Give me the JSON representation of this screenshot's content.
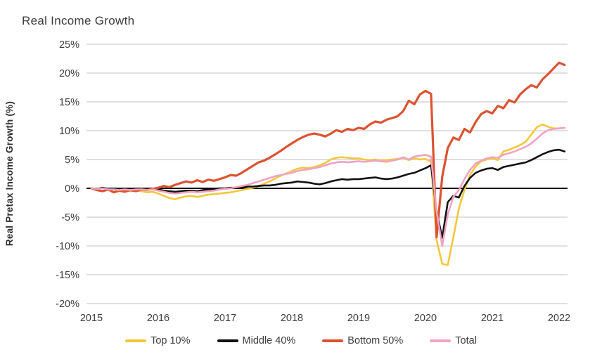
{
  "chart_data": {
    "type": "line",
    "title": "Real Income Growth",
    "ylabel": "Real Pretax Income Growth (%)",
    "xlabel": "",
    "ylim": [
      -20,
      25
    ],
    "ytick_values": [
      25,
      20,
      15,
      10,
      5,
      0,
      -5,
      -10,
      -15,
      -20
    ],
    "ytick_labels": [
      "25%",
      "20%",
      "15%",
      "10%",
      "5%",
      "0%",
      "-5%",
      "-10%",
      "-15%",
      "-20%"
    ],
    "xtick_labels": [
      "2015",
      "2016",
      "2017",
      "2018",
      "2019",
      "2020",
      "2021",
      "2022"
    ],
    "x_start": "2015-01",
    "x_end": "2022-02",
    "x_frequency": "monthly",
    "grid": "horizontal-only",
    "grid_color": "#c2c2c2",
    "text_color": "#3c3c3c",
    "zero_line": true,
    "zero_line_color": "#000000",
    "legend_position": "bottom",
    "series": [
      {
        "name": "Top 10%",
        "color": "#F3C73C",
        "line_width": 2.6,
        "values": [
          0,
          -0.2,
          0.1,
          -0.3,
          -0.2,
          -0.4,
          -0.3,
          -0.5,
          -0.4,
          -0.5,
          -0.7,
          -0.6,
          -0.9,
          -1.3,
          -1.7,
          -1.9,
          -1.6,
          -1.4,
          -1.3,
          -1.5,
          -1.3,
          -1.1,
          -1.0,
          -0.9,
          -0.8,
          -0.7,
          -0.5,
          -0.3,
          -0.1,
          0.1,
          0.4,
          0.8,
          1.2,
          1.7,
          2.2,
          2.6,
          3.0,
          3.4,
          3.6,
          3.5,
          3.7,
          4.0,
          4.4,
          5.0,
          5.3,
          5.4,
          5.3,
          5.2,
          5.2,
          5.0,
          4.9,
          5.0,
          4.8,
          4.9,
          5.0,
          5.1,
          5.3,
          4.9,
          5.2,
          5.0,
          5.1,
          4.6,
          -9.0,
          -13.1,
          -13.3,
          -8.5,
          -3.5,
          -0.3,
          2.3,
          3.8,
          4.7,
          5.0,
          5.2,
          4.9,
          6.4,
          6.7,
          7.1,
          7.5,
          8.1,
          9.3,
          10.6,
          11.1,
          10.7,
          10.4,
          10.4,
          10.5
        ]
      },
      {
        "name": "Middle 40%",
        "color": "#111111",
        "line_width": 2.6,
        "values": [
          0,
          -0.1,
          0.1,
          -0.1,
          -0.2,
          -0.1,
          -0.2,
          -0.1,
          -0.2,
          -0.1,
          -0.2,
          -0.1,
          -0.2,
          -0.4,
          -0.5,
          -0.6,
          -0.5,
          -0.4,
          -0.4,
          -0.5,
          -0.3,
          -0.2,
          -0.1,
          0.0,
          0.0,
          0.1,
          0.1,
          0.2,
          0.3,
          0.3,
          0.4,
          0.5,
          0.5,
          0.6,
          0.8,
          0.9,
          1.0,
          1.2,
          1.1,
          1.0,
          0.8,
          0.7,
          0.9,
          1.2,
          1.4,
          1.6,
          1.5,
          1.6,
          1.6,
          1.7,
          1.8,
          1.9,
          1.7,
          1.6,
          1.7,
          1.9,
          2.2,
          2.5,
          2.7,
          3.1,
          3.5,
          4.0,
          -4.0,
          -8.6,
          -2.4,
          -1.3,
          -1.6,
          0.4,
          1.8,
          2.7,
          3.1,
          3.4,
          3.5,
          3.2,
          3.7,
          3.9,
          4.1,
          4.3,
          4.5,
          4.9,
          5.4,
          5.9,
          6.3,
          6.6,
          6.7,
          6.4
        ]
      },
      {
        "name": "Bottom 50%",
        "color": "#DB5331",
        "line_width": 3.2,
        "values": [
          0,
          -0.3,
          -0.5,
          -0.2,
          -0.7,
          -0.4,
          -0.6,
          -0.3,
          -0.5,
          -0.2,
          -0.3,
          -0.1,
          0.1,
          0.4,
          0.2,
          0.6,
          0.9,
          1.2,
          1.0,
          1.4,
          1.1,
          1.5,
          1.3,
          1.6,
          1.9,
          2.3,
          2.2,
          2.7,
          3.3,
          3.9,
          4.5,
          4.8,
          5.3,
          5.9,
          6.5,
          7.2,
          7.8,
          8.4,
          8.9,
          9.3,
          9.5,
          9.3,
          9.0,
          9.5,
          10.1,
          9.8,
          10.3,
          10.1,
          10.5,
          10.3,
          11.1,
          11.6,
          11.4,
          11.9,
          12.2,
          12.5,
          13.4,
          15.2,
          14.6,
          16.3,
          16.9,
          16.4,
          -8.5,
          2.0,
          7.0,
          8.8,
          8.4,
          10.3,
          9.7,
          11.5,
          12.9,
          13.4,
          13.0,
          14.3,
          13.9,
          15.3,
          14.9,
          16.3,
          17.2,
          17.9,
          17.5,
          18.9,
          19.8,
          20.8,
          21.8,
          21.4
        ]
      },
      {
        "name": "Total",
        "color": "#F0A3C2",
        "line_width": 2.6,
        "values": [
          0,
          -0.1,
          0.0,
          -0.2,
          -0.2,
          -0.3,
          -0.2,
          -0.3,
          -0.2,
          -0.2,
          -0.3,
          -0.2,
          -0.4,
          -0.6,
          -0.8,
          -0.9,
          -0.8,
          -0.7,
          -0.6,
          -0.7,
          -0.6,
          -0.5,
          -0.4,
          -0.2,
          -0.1,
          0.0,
          0.2,
          0.4,
          0.6,
          0.9,
          1.2,
          1.5,
          1.8,
          2.1,
          2.3,
          2.5,
          2.7,
          3.0,
          3.2,
          3.3,
          3.5,
          3.7,
          4.0,
          4.3,
          4.5,
          4.6,
          4.5,
          4.6,
          4.7,
          4.6,
          4.7,
          4.8,
          4.7,
          4.6,
          4.8,
          5.0,
          5.4,
          5.0,
          5.5,
          5.7,
          5.8,
          5.5,
          -4.0,
          -10.0,
          -4.5,
          -1.5,
          -0.3,
          1.6,
          3.2,
          4.3,
          4.8,
          5.2,
          5.4,
          5.3,
          5.8,
          6.1,
          6.4,
          6.8,
          7.2,
          7.8,
          8.6,
          9.5,
          10.1,
          10.3,
          10.4,
          10.5
        ]
      }
    ]
  }
}
